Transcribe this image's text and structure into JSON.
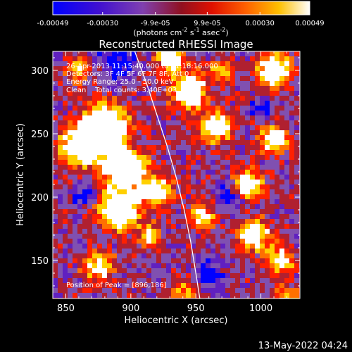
{
  "chart_data": {
    "type": "heatmap",
    "title": "Reconstructed RHESSI Image",
    "xlabel": "Heliocentric X (arcsec)",
    "ylabel": "Heliocentric Y (arcsec)",
    "xlim": [
      840,
      1030
    ],
    "ylim": [
      120,
      315
    ],
    "x_ticks": [
      850,
      900,
      950,
      1000
    ],
    "y_ticks": [
      150,
      200,
      250,
      300
    ],
    "colorbar": {
      "range": [
        -0.00049,
        0.00049
      ],
      "tick_values": [
        -0.00049,
        -0.0003,
        -9.9e-05,
        9.9e-05,
        0.0003,
        0.00049
      ],
      "tick_labels": [
        "-0.00049",
        "-0.00030",
        "-9.9e-05",
        "9.9e-05",
        "0.00030",
        "0.00049"
      ],
      "unit_label": "(photons cm",
      "unit_sup1": "-2",
      "unit_mid": " s",
      "unit_sup2": "-1",
      "unit_mid2": " asec",
      "unit_sup3": "-2",
      "unit_end": ")"
    },
    "annotations": [
      "26-Apr-2013 11:15:40.000 to 11:18:16.000",
      "Detectors: 3F 4F 5F 6F 7F 8F, Att 0",
      "Energy Range: 25.0 - 50.0 keV",
      "Clean    Total counts: 3.40E+03"
    ],
    "peak_label": "Position of Peak = [896,186]",
    "peak": [
      896,
      186
    ],
    "limb_curve": [
      [
        903,
        315
      ],
      [
        912,
        290
      ],
      [
        920,
        265
      ],
      [
        928,
        240
      ],
      [
        935,
        215
      ],
      [
        941,
        190
      ],
      [
        946,
        165
      ],
      [
        950,
        140
      ],
      [
        953,
        120
      ]
    ],
    "colormap": [
      "#0000ff",
      "#6020c0",
      "#8050b0",
      "#b02030",
      "#ff2000",
      "#ff7000",
      "#ffd000",
      "#ffffff"
    ]
  },
  "footer": {
    "date": "13-May-2022 04:24"
  }
}
